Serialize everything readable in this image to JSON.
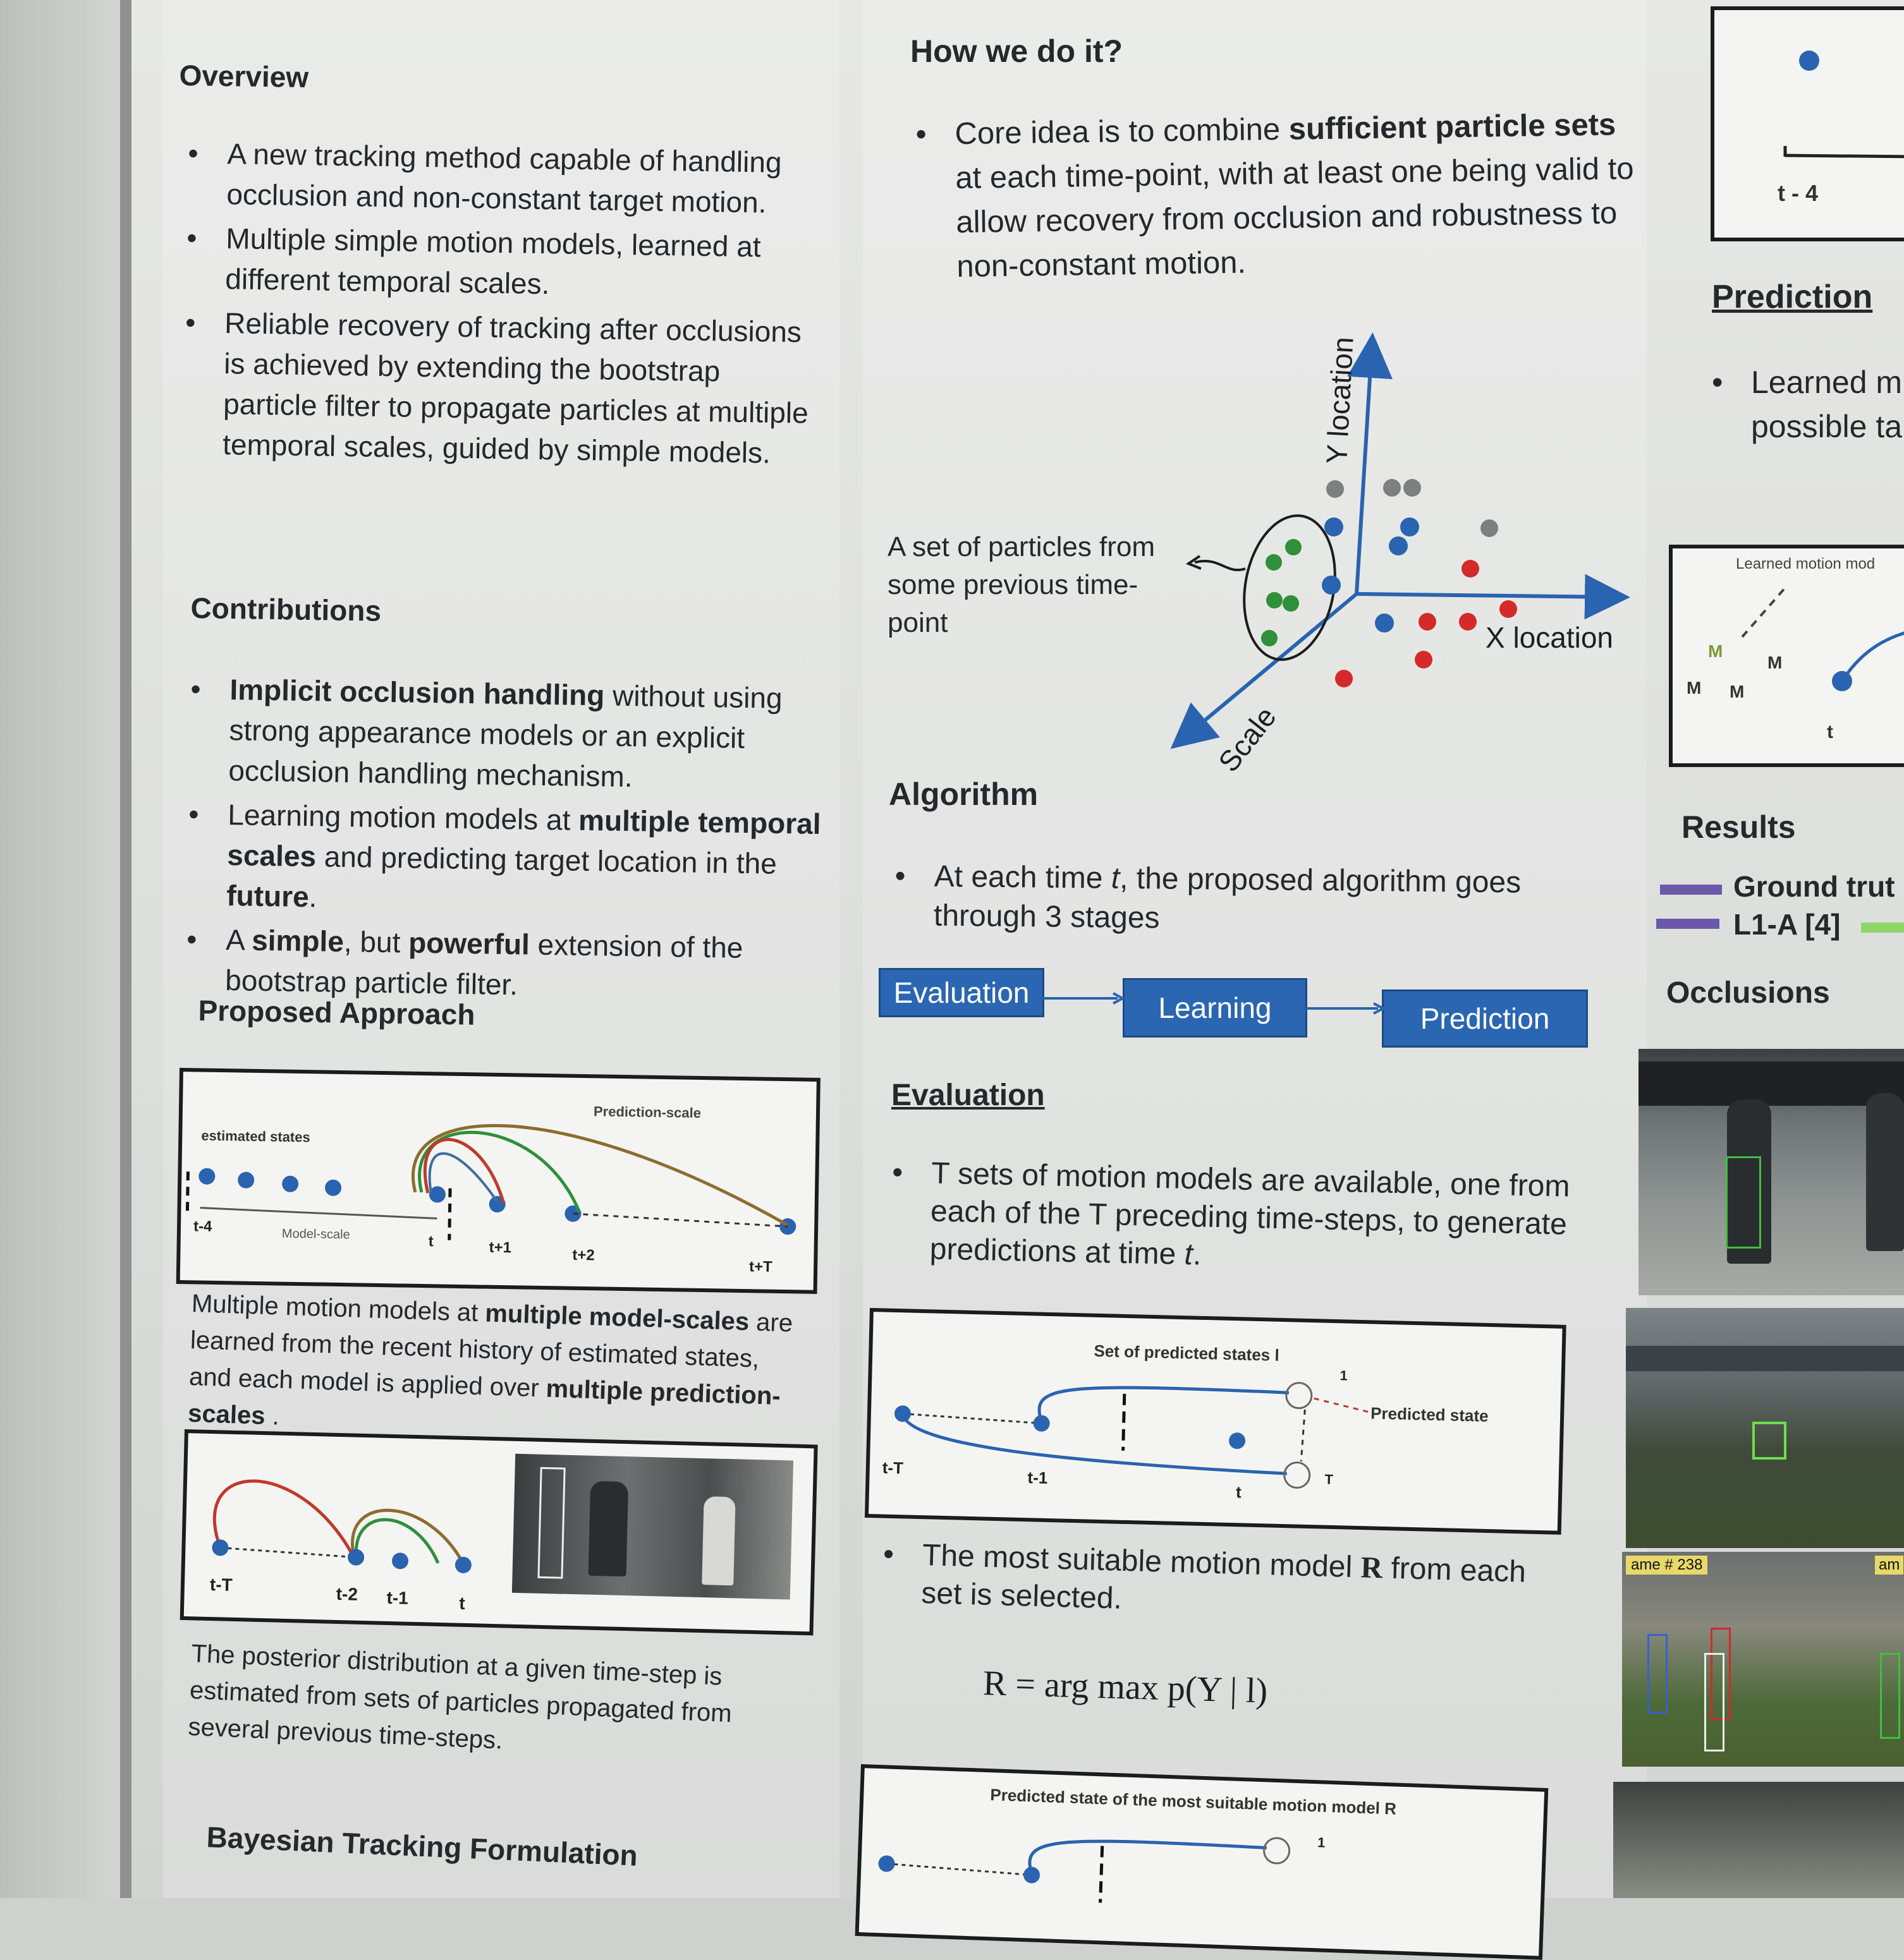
{
  "left": {
    "overview_title": "Overview",
    "overview_items": [
      "A new tracking method capable of handling occlusion and non-constant target motion.",
      "Multiple simple motion models, learned at different temporal scales.",
      "Reliable recovery of tracking after occlusions is achieved by extending the bootstrap particle filter to propagate particles at multiple temporal scales, guided by simple models."
    ],
    "contributions_title": "Contributions",
    "contrib_1_bold": "Implicit occlusion handling",
    "contrib_1_rest": " without using strong appearance models or an explicit occlusion handling mechanism.",
    "contrib_2_a": "Learning motion models at ",
    "contrib_2_bold1": "multiple temporal scales",
    "contrib_2_b": " and predicting target location in the ",
    "contrib_2_bold2": "future",
    "contrib_2_c": ".",
    "contrib_3_a": "A ",
    "contrib_3_bold1": "simple",
    "contrib_3_b": ", but ",
    "contrib_3_bold2": "powerful",
    "contrib_3_c": " extension of the bootstrap particle filter.",
    "proposed_title": "Proposed Approach",
    "fig1": {
      "estimated_states": "estimated states",
      "prediction_scale": "Prediction-scale",
      "model_scale": "Model-scale",
      "ticks": [
        "t-4",
        "t",
        "t+1",
        "t+2",
        "t+T"
      ]
    },
    "caption1_a": "Multiple motion models at ",
    "caption1_bold1": "multiple model-scales",
    "caption1_b": " are learned from the recent history of estimated states, and each model is applied over ",
    "caption1_bold2": "multiple prediction-scales",
    "caption1_c": " .",
    "fig2": {
      "ticks": [
        "t-T",
        "t-2",
        "t-1",
        "t"
      ]
    },
    "caption2": "The posterior distribution at a given time-step is estimated from sets of particles propagated from several previous time-steps.",
    "bayesian_title": "Bayesian Tracking Formulation"
  },
  "middle": {
    "how_title": "How we do it?",
    "core_a": "Core idea is to combine ",
    "core_bold": "sufficient particle sets",
    "core_b": " at each time-point, with at least one being valid to allow recovery from occlusion and robustness to non-constant motion.",
    "particles_label": "A set of particles from some previous time-point",
    "axis_y": "Y location",
    "axis_x": "X location",
    "axis_scale": "Scale",
    "algorithm_title": "Algorithm",
    "algo_a": "At each time ",
    "algo_t": "t",
    "algo_b": ", the proposed  algorithm goes through 3 stages",
    "stages": [
      "Evaluation",
      "Learning",
      "Prediction"
    ],
    "evaluation_title": "Evaluation",
    "eval_a": "T sets of motion models are available, one from each of the T preceding time-steps, to generate predictions at time ",
    "eval_t": "t",
    "eval_b": ".",
    "fig3": {
      "title": "Set of predicted states l",
      "predicted_state": "Predicted state",
      "ticks": [
        "t-T",
        "t-1",
        "t"
      ],
      "one": "1",
      "T": "T"
    },
    "select_a": "The most suitable motion model ",
    "select_sym": "R",
    "select_b": " from each set is selected.",
    "equation": "R = arg max p(Y | l)",
    "fig4_title": "Predicted state of the most suitable motion model R",
    "fig4_one": "1"
  },
  "right": {
    "tick_t4": "t - 4",
    "prediction_title": "Prediction",
    "pred_line1": "Learned m",
    "pred_line2": "possible ta",
    "fig_label": "Learned motion mod",
    "fig_t": "t",
    "results_title": "Results",
    "legend": [
      "Ground trut",
      "L1-A [4]"
    ],
    "occlusions_title": "Occlusions",
    "frame_label": "ame # 238",
    "frame_label2": "am"
  },
  "colors": {
    "blue": "#2a63b0",
    "red": "#d42a2a",
    "green": "#2f8f3a",
    "gray": "#7d7f80",
    "purple": "#6b58a8"
  }
}
